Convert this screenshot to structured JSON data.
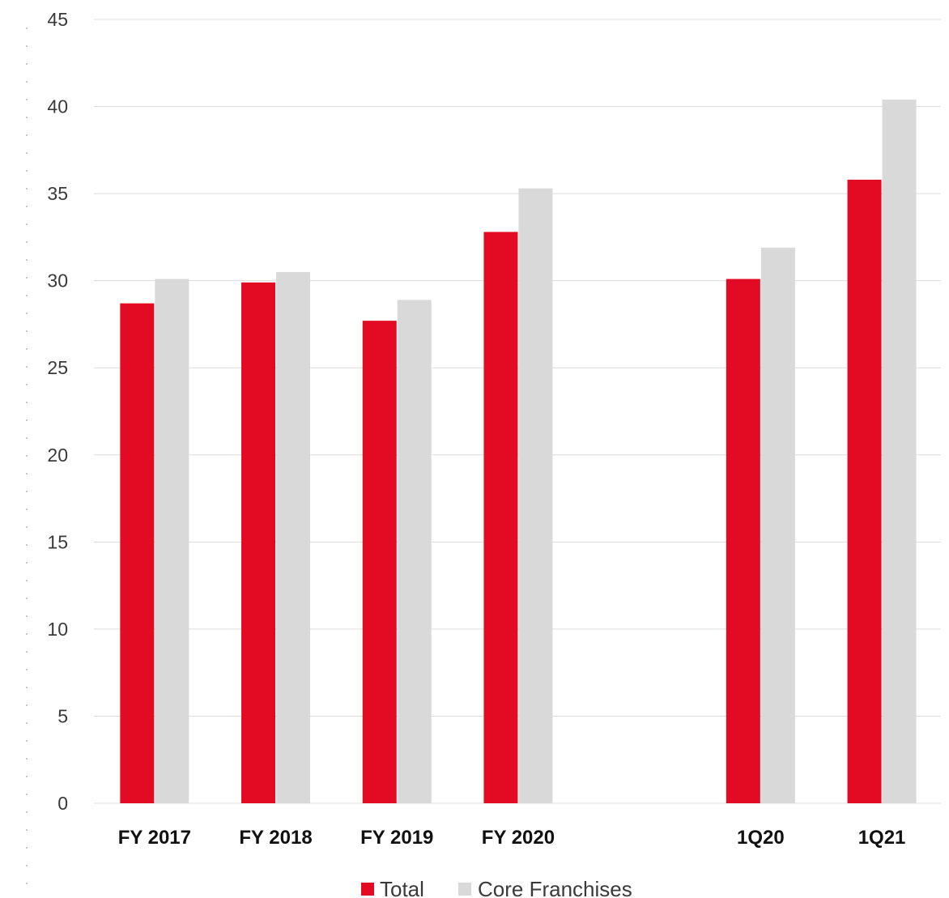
{
  "chart_data": {
    "type": "bar",
    "categories": [
      "FY 2017",
      "FY 2018",
      "FY 2019",
      "FY 2020",
      "",
      "1Q20",
      "1Q21"
    ],
    "series": [
      {
        "name": "Total",
        "color": "#e30a23",
        "values": [
          28.7,
          29.9,
          27.7,
          32.8,
          null,
          30.1,
          35.8
        ]
      },
      {
        "name": "Core Franchises",
        "color": "#d9d9d9",
        "values": [
          30.1,
          30.5,
          28.9,
          35.3,
          null,
          31.9,
          40.4
        ]
      }
    ],
    "ylim": [
      0,
      45
    ],
    "yticks": [
      0,
      5,
      10,
      15,
      20,
      25,
      30,
      35,
      40,
      45
    ],
    "grid": true,
    "legend_position": "bottom-center",
    "title": "",
    "xlabel": "",
    "ylabel": ""
  }
}
